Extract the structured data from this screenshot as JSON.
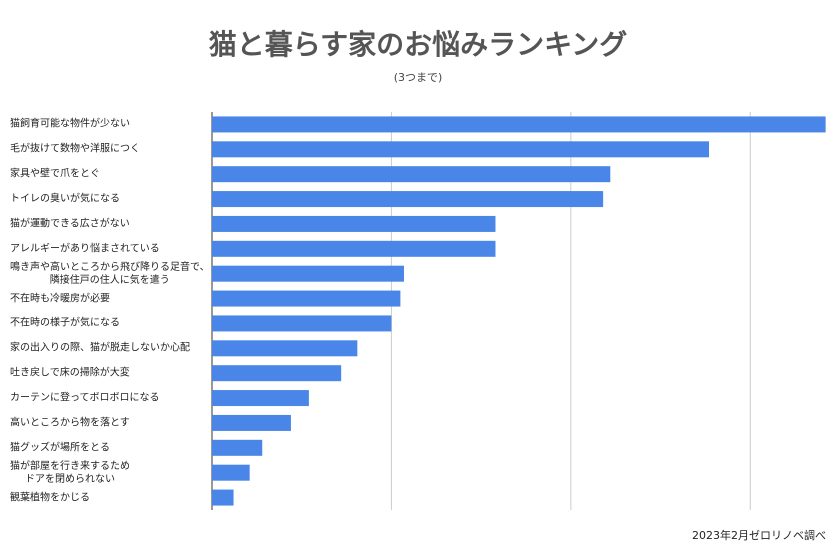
{
  "chart_data": {
    "type": "hbar",
    "title": "猫と暮らす家のお悩みランキング",
    "subtitle": "(3つまで)",
    "source": "2023年2月ゼロリノベ調べ",
    "categories": [
      "猫飼育可能な物件が少ない",
      "毛が抜けて数物や洋服につく",
      "家具や壁で爪をとぐ",
      "トイレの臭いが気になる",
      "猫が運動できる広さがない",
      "アレルギーがあり悩まされている",
      "鳴き声や高いところから飛び降りる足音で、\n隣接住戸の住人に気を遣う",
      "不在時も冷暖房が必要",
      "不在時の様子が気になる",
      "家の出入りの際、猫が脱走しないか心配",
      "吐き戻しで床の掃除が大変",
      "カーテンに登ってボロボロになる",
      "高いところから物を落とす",
      "猫グッズが場所をとる",
      "猫が部屋を行き来するため\nドアを閉められない",
      "観葉植物をかじる"
    ],
    "values": [
      34.2,
      27.7,
      22.2,
      21.8,
      15.8,
      15.8,
      10.7,
      10.5,
      10.0,
      8.1,
      7.2,
      5.4,
      4.4,
      2.8,
      2.1,
      1.2
    ],
    "color": "#4a86e8",
    "xlim": [
      0,
      34.5
    ],
    "xticks": [
      0,
      10,
      20,
      30
    ],
    "tick_labels": false,
    "grid": true
  }
}
